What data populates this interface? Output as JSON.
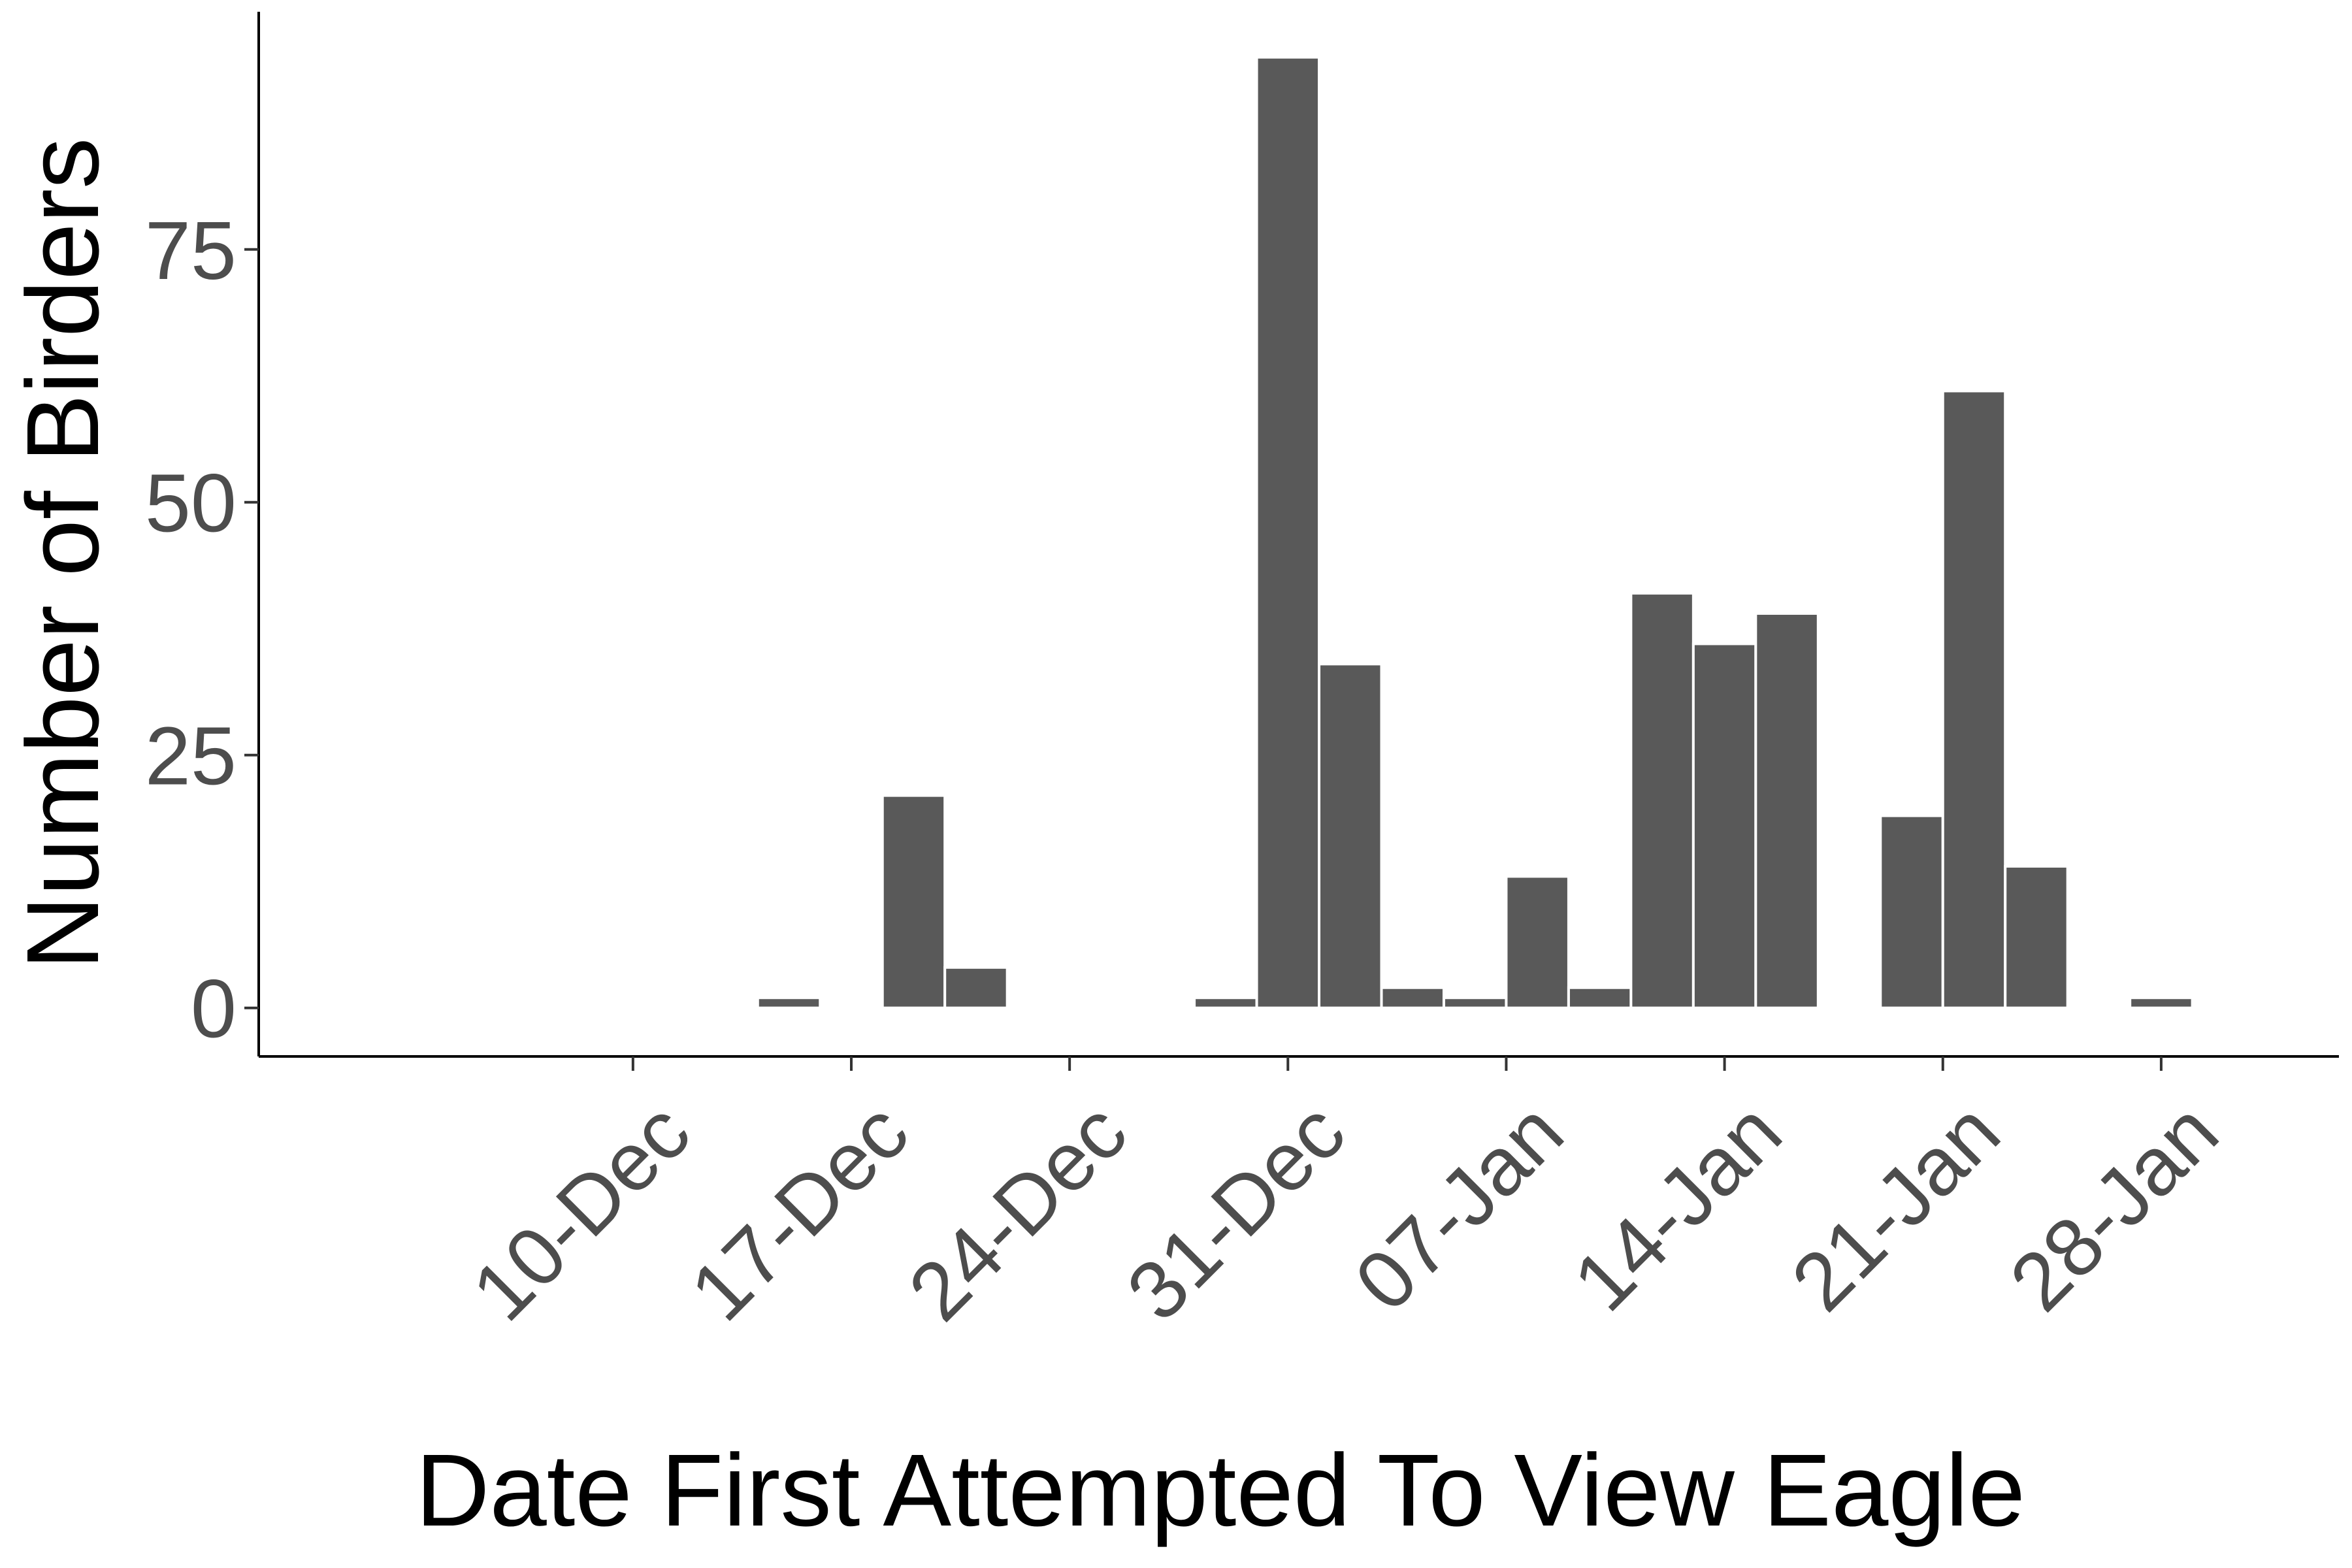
{
  "chart_data": {
    "type": "bar",
    "title": "",
    "xlabel": "Date First Attempted To View Eagle",
    "ylabel": "Number of Birders",
    "x_tick_labels": [
      "10-Dec",
      "17-Dec",
      "24-Dec",
      "31-Dec",
      "07-Jan",
      "14-Jan",
      "21-Jan",
      "28-Jan"
    ],
    "x_tick_days": [
      0,
      7,
      14,
      21,
      28,
      35,
      42,
      49
    ],
    "y_ticks": [
      0,
      25,
      50,
      75
    ],
    "ylim": [
      -4.8,
      98.5
    ],
    "x_range_days": [
      -12.0,
      54.7
    ],
    "bin_width_days": 2,
    "grid": false,
    "bars": [
      {
        "start": 4,
        "end": 6,
        "value": 1
      },
      {
        "start": 8,
        "end": 10,
        "value": 21
      },
      {
        "start": 10,
        "end": 12,
        "value": 4
      },
      {
        "start": 18,
        "end": 20,
        "value": 1
      },
      {
        "start": 20,
        "end": 22,
        "value": 94
      },
      {
        "start": 22,
        "end": 24,
        "value": 34
      },
      {
        "start": 24,
        "end": 26,
        "value": 2
      },
      {
        "start": 26,
        "end": 28,
        "value": 1
      },
      {
        "start": 28,
        "end": 30,
        "value": 13
      },
      {
        "start": 30,
        "end": 32,
        "value": 2
      },
      {
        "start": 32,
        "end": 34,
        "value": 41
      },
      {
        "start": 34,
        "end": 36,
        "value": 36
      },
      {
        "start": 36,
        "end": 38,
        "value": 39
      },
      {
        "start": 40,
        "end": 42,
        "value": 19
      },
      {
        "start": 42,
        "end": 44,
        "value": 61
      },
      {
        "start": 44,
        "end": 46,
        "value": 14
      },
      {
        "start": 48,
        "end": 50,
        "value": 1
      }
    ],
    "bar_color": "#595959"
  }
}
